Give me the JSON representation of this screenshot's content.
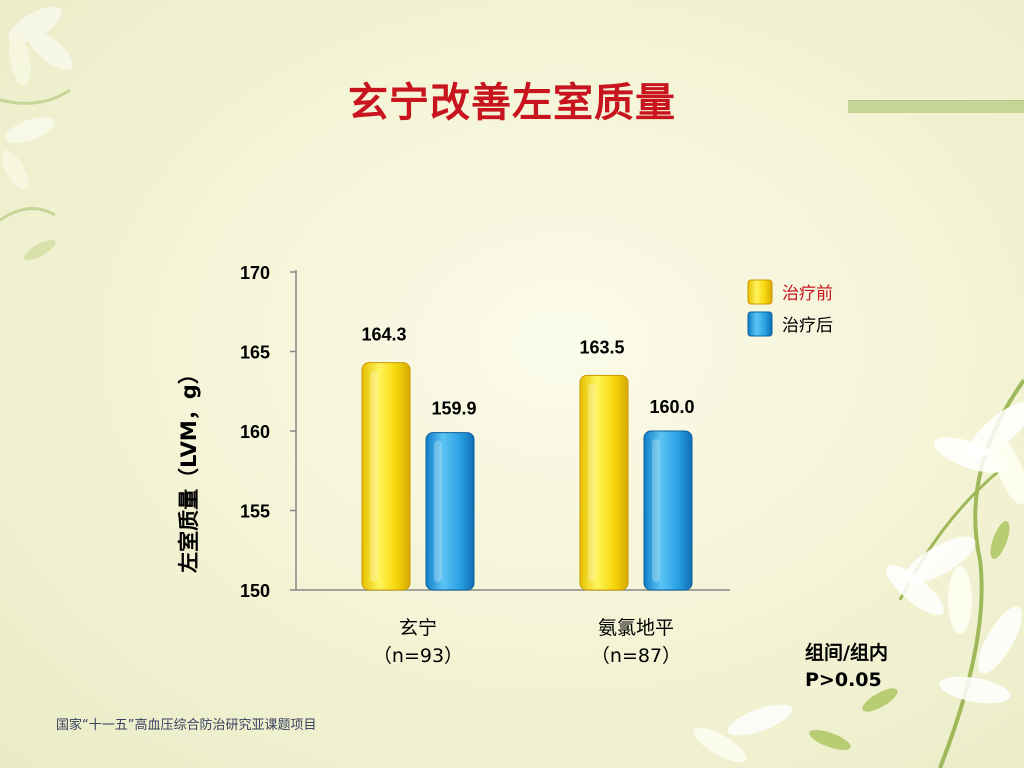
{
  "slide": {
    "title": "玄宁改善左室质量",
    "footer": "国家“十一五”高血压综合防治研究亚课题项目",
    "p_note_line1": "组间/组内",
    "p_note_line2": "P>0.05"
  },
  "colors": {
    "title": "#c8141e",
    "before": "#f5d30c",
    "after": "#1f9ade",
    "legend_before_text": "#c8141e"
  },
  "chart_data": {
    "type": "bar",
    "ylabel": "左室质量（LVM，g）",
    "xlabel": "",
    "ylim": [
      150,
      170
    ],
    "yticks": [
      150,
      155,
      160,
      165,
      170
    ],
    "categories": [
      {
        "line1": "玄宁",
        "line2": "（n=93）"
      },
      {
        "line1": "氨氯地平",
        "line2": "（n=87）"
      }
    ],
    "series": [
      {
        "name": "治疗前",
        "values": [
          164.3,
          163.5
        ],
        "labels": [
          "164.3",
          "163.5"
        ]
      },
      {
        "name": "治疗后",
        "values": [
          159.9,
          160.0
        ],
        "labels": [
          "159.9",
          "160.0"
        ]
      }
    ],
    "legend_position": "top-right",
    "grid": false
  }
}
